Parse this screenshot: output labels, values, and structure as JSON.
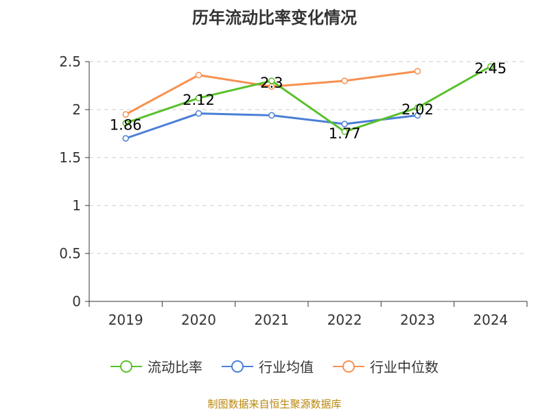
{
  "chart_data": {
    "type": "line",
    "title": "历年流动比率变化情况",
    "categories": [
      "2019",
      "2020",
      "2021",
      "2022",
      "2023",
      "2024"
    ],
    "ylim": [
      0,
      2.5
    ],
    "yticks": [
      "0",
      "0.5",
      "1",
      "1.5",
      "2",
      "2.5"
    ],
    "grid": true,
    "legend_position": "bottom",
    "series": [
      {
        "name": "流动比率",
        "color": "#5ac02a",
        "values": [
          1.86,
          2.12,
          2.3,
          1.77,
          2.02,
          2.45
        ],
        "labels": [
          "1.86",
          "2.12",
          "2.3",
          "1.77",
          "2.02",
          "2.45"
        ]
      },
      {
        "name": "行业均值",
        "color": "#4a7fd6",
        "values": [
          1.7,
          1.96,
          1.94,
          1.85,
          1.94,
          null
        ]
      },
      {
        "name": "行业中位数",
        "color": "#f79050",
        "values": [
          1.95,
          2.36,
          2.24,
          2.3,
          2.4,
          null
        ]
      }
    ]
  },
  "source": "制图数据来自恒生聚源数据库"
}
